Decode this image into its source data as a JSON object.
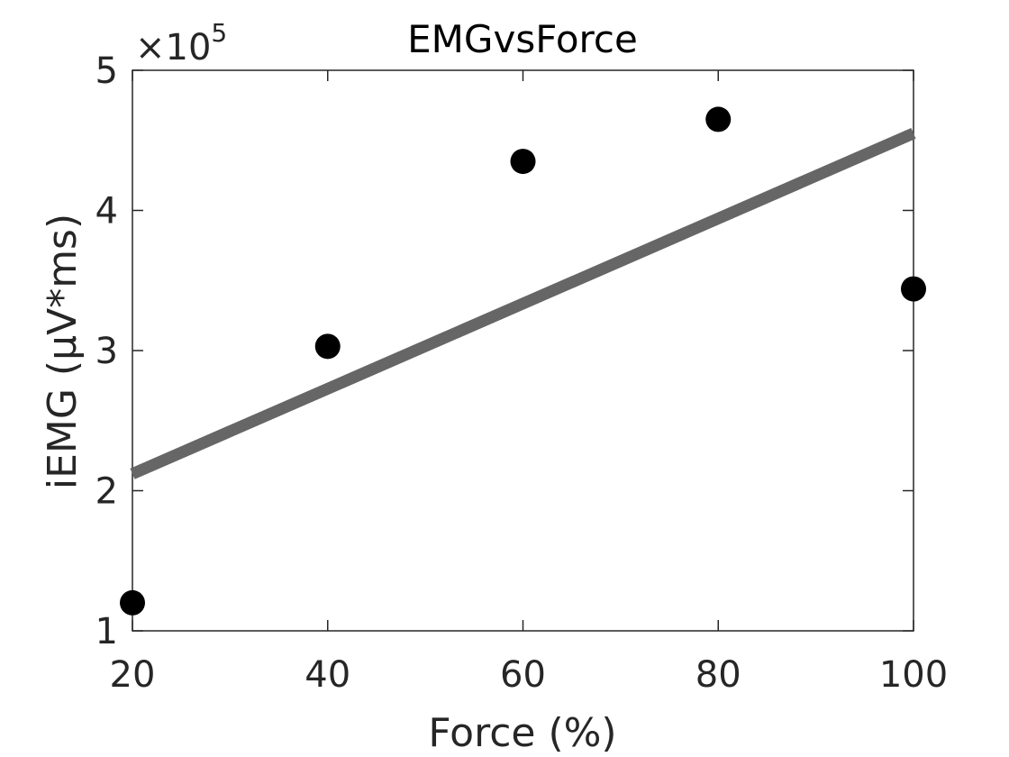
{
  "chart_data": {
    "type": "scatter",
    "title": "EMGvsForce",
    "xlabel": "Force (%)",
    "ylabel": "iEMG (μV*ms)",
    "y_multiplier_label": {
      "base": "×10",
      "exponent": "5"
    },
    "xlim": [
      20,
      100
    ],
    "ylim": [
      1,
      5
    ],
    "xticks": [
      20,
      40,
      60,
      80,
      100
    ],
    "yticks": [
      1,
      2,
      3,
      4,
      5
    ],
    "grid": false,
    "series": [
      {
        "kind": "points",
        "color": "#000000",
        "x": [
          20,
          40,
          60,
          80,
          100
        ],
        "y": [
          1.2,
          3.03,
          4.35,
          4.65,
          3.44
        ]
      },
      {
        "kind": "fit-line",
        "color": "#666666",
        "x": [
          20,
          100
        ],
        "y": [
          2.12,
          4.55
        ]
      }
    ]
  }
}
